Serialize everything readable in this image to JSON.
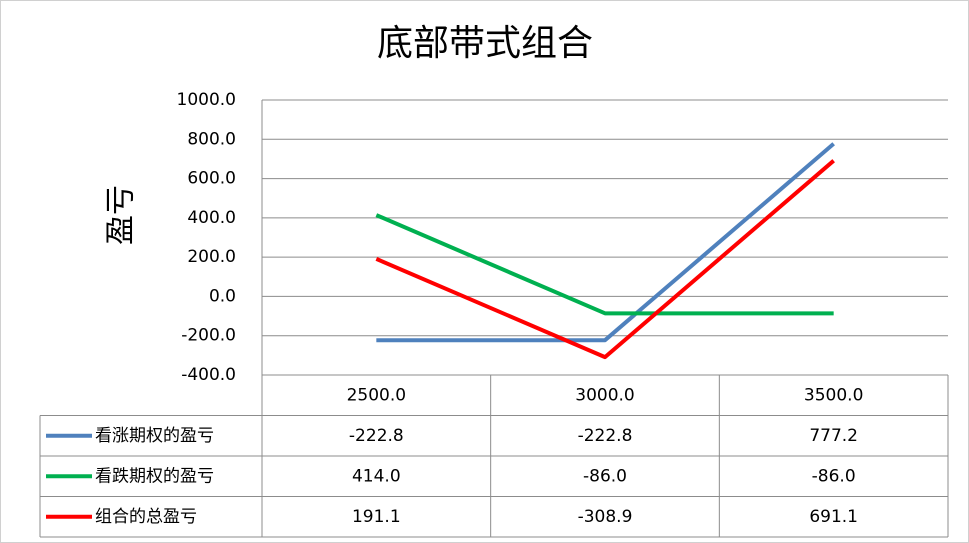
{
  "chart_data": {
    "type": "line",
    "title": "底部带式组合",
    "y_label": "盈亏",
    "categories": [
      "2500.0",
      "3000.0",
      "3500.0"
    ],
    "series": [
      {
        "name": "看涨期权的盈亏",
        "color": "#4f81bd",
        "values": [
          -222.8,
          -222.8,
          777.2
        ],
        "value_labels": [
          "-222.8",
          "-222.8",
          "777.2"
        ]
      },
      {
        "name": "看跌期权的盈亏",
        "color": "#00b050",
        "values": [
          414.0,
          -86.0,
          -86.0
        ],
        "value_labels": [
          "414.0",
          "-86.0",
          "-86.0"
        ]
      },
      {
        "name": "组合的总盈亏",
        "color": "#ff0000",
        "values": [
          191.1,
          -308.9,
          691.1
        ],
        "value_labels": [
          "191.1",
          "-308.9",
          "691.1"
        ]
      }
    ],
    "ylim": [
      -400,
      1000
    ],
    "yticks": [
      {
        "value": -400,
        "label": "-400.0"
      },
      {
        "value": -200,
        "label": "-200.0"
      },
      {
        "value": 0,
        "label": "0.0"
      },
      {
        "value": 200,
        "label": "200.0"
      },
      {
        "value": 400,
        "label": "400.0"
      },
      {
        "value": 600,
        "label": "600.0"
      },
      {
        "value": 800,
        "label": "800.0"
      },
      {
        "value": 1000,
        "label": "1000.0"
      }
    ],
    "grid": true
  }
}
